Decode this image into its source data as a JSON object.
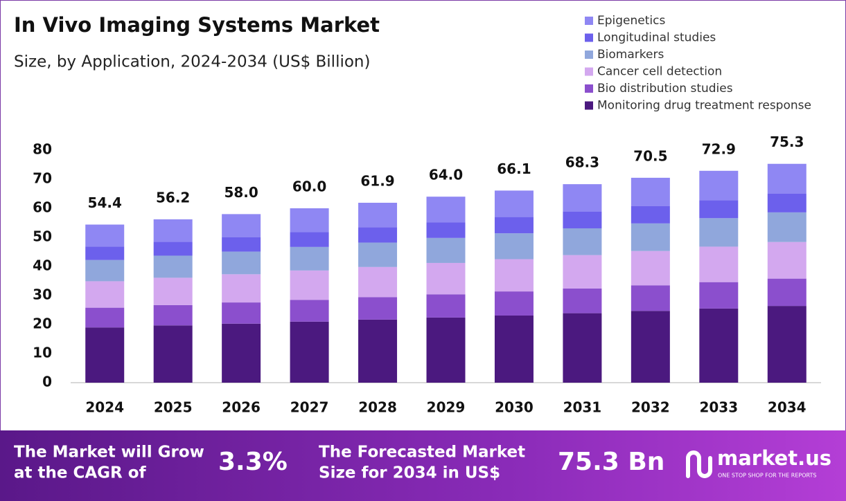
{
  "chart_data": {
    "type": "stacked_bar",
    "title": "In Vivo Imaging Systems Market",
    "subtitle": "Size, by Application, 2024-2034 (US$ Billion)",
    "categories": [
      "2024",
      "2025",
      "2026",
      "2027",
      "2028",
      "2029",
      "2030",
      "2031",
      "2032",
      "2033",
      "2034"
    ],
    "series": [
      {
        "name": "Monitoring drug treatment response",
        "color": "#4b197f",
        "values": [
          19.0,
          19.7,
          20.3,
          21.0,
          21.7,
          22.4,
          23.1,
          23.9,
          24.7,
          25.5,
          26.4
        ]
      },
      {
        "name": "Bio distribution studies",
        "color": "#8b4fcd",
        "values": [
          6.8,
          7.0,
          7.3,
          7.5,
          7.7,
          8.0,
          8.3,
          8.5,
          8.8,
          9.1,
          9.4
        ]
      },
      {
        "name": "Cancer cell detection",
        "color": "#d3a8ef",
        "values": [
          9.1,
          9.4,
          9.7,
          10.1,
          10.4,
          10.8,
          11.1,
          11.5,
          11.8,
          12.2,
          12.6
        ]
      },
      {
        "name": "Biomarkers",
        "color": "#90a7dc",
        "values": [
          7.3,
          7.6,
          7.8,
          8.1,
          8.4,
          8.6,
          8.9,
          9.2,
          9.5,
          9.8,
          10.2
        ]
      },
      {
        "name": "Longitudinal studies",
        "color": "#6c60ec",
        "values": [
          4.6,
          4.8,
          4.9,
          5.1,
          5.3,
          5.4,
          5.6,
          5.8,
          6.0,
          6.2,
          6.4
        ]
      },
      {
        "name": "Epigenetics",
        "color": "#8f87f3",
        "values": [
          7.6,
          7.7,
          8.0,
          8.2,
          8.4,
          8.8,
          9.1,
          9.4,
          9.7,
          10.1,
          10.3
        ]
      }
    ],
    "totals": {
      "values": [
        54.4,
        56.2,
        58.0,
        60.0,
        61.9,
        64.0,
        66.1,
        68.3,
        70.5,
        72.9,
        75.3
      ],
      "value_labels": [
        "54.4",
        "56.2",
        "58.0",
        "60.0",
        "61.9",
        "64.0",
        "66.1",
        "68.3",
        "70.5",
        "72.9",
        "75.3"
      ]
    },
    "ylim": [
      0,
      80
    ],
    "yticks": [
      0,
      10,
      20,
      30,
      40,
      50,
      60,
      70,
      80
    ],
    "grid": false,
    "legend": "top-right"
  },
  "footer": {
    "cagr_text": [
      "The Market will Grow",
      "at the CAGR of"
    ],
    "cagr_value": "3.3%",
    "forecast_text": [
      "The Forecasted Market",
      "Size for 2034 in US$"
    ],
    "forecast_value": "75.3 Bn",
    "brand": "market.us",
    "tagline": "ONE STOP SHOP FOR THE REPORTS"
  }
}
